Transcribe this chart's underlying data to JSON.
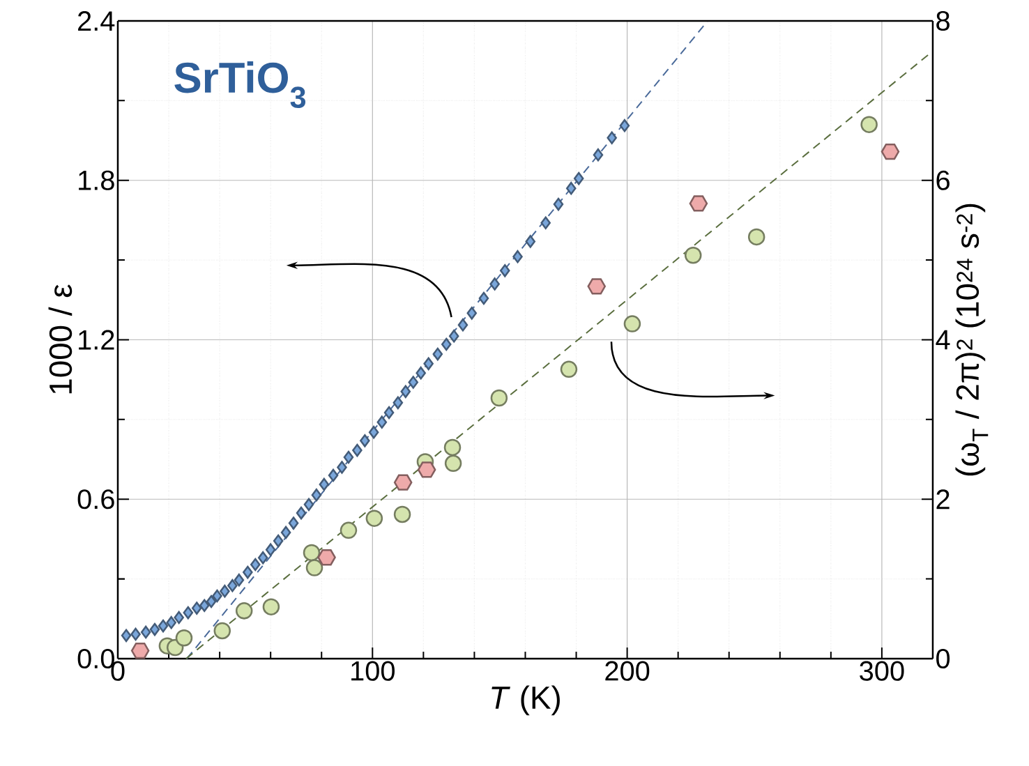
{
  "chart_data": {
    "type": "scatter",
    "annotations": [
      "SrTiO$_{3}$"
    ],
    "xlabel": "*T* (K)",
    "ylabel": "1000 / ε",
    "y2label": "(ω$_{T}$ / 2π)$^{2}$ (10$^{24}$ s$^{-2}$)",
    "xlim": [
      0,
      320
    ],
    "xticks": [
      0,
      100,
      200,
      300
    ],
    "ylim": [
      0,
      2.4
    ],
    "yticks": [
      {
        "value": 0,
        "label": "0.0"
      },
      0.6,
      1.2,
      1.8,
      2.4
    ],
    "y2lim": [
      0,
      8
    ],
    "y2ticks": [
      0,
      2,
      4,
      6,
      8
    ],
    "grid": true,
    "series": [
      {
        "axis": "y",
        "marker": "diamond",
        "color": "#7aa6da",
        "x": [
          3.3,
          7,
          11,
          14.5,
          17.8,
          21,
          24,
          27.6,
          31,
          34,
          36.7,
          39,
          42,
          45,
          47.6,
          51,
          54,
          57,
          60,
          63,
          66,
          69,
          72,
          75,
          78,
          81,
          84.6,
          88,
          90.6,
          94,
          97,
          100.5,
          103.7,
          106.5,
          110,
          113,
          116,
          119,
          122,
          125.6,
          129,
          132,
          135.5,
          139,
          143.7,
          148,
          152,
          157,
          162,
          168,
          173,
          178,
          181,
          188.6,
          194,
          199
        ],
        "values": [
          0.087,
          0.092,
          0.1,
          0.11,
          0.123,
          0.136,
          0.155,
          0.173,
          0.19,
          0.2,
          0.215,
          0.236,
          0.254,
          0.275,
          0.296,
          0.325,
          0.354,
          0.38,
          0.41,
          0.443,
          0.475,
          0.51,
          0.548,
          0.58,
          0.616,
          0.656,
          0.69,
          0.72,
          0.758,
          0.784,
          0.82,
          0.852,
          0.89,
          0.926,
          0.963,
          1.005,
          1.04,
          1.075,
          1.11,
          1.146,
          1.183,
          1.214,
          1.256,
          1.3,
          1.356,
          1.41,
          1.46,
          1.513,
          1.57,
          1.64,
          1.71,
          1.77,
          1.807,
          1.896,
          1.96,
          2.006
        ]
      },
      {
        "type": "line",
        "axis": "y",
        "marker": "none",
        "line_style": "dashed",
        "color": "#4a6a9a",
        "x": [
          27.1,
          231.6
        ],
        "values": [
          0,
          2.4
        ]
      },
      {
        "axis": "y2",
        "marker": "circle",
        "color": "#d5e4ae",
        "x": [
          19.4,
          22.5,
          26,
          41,
          49.6,
          60.2,
          76.1,
          77.2,
          90.6,
          100.7,
          111.7,
          120.7,
          131.4,
          131.7,
          149.7,
          177.1,
          202,
          225.9,
          250.8,
          295
        ],
        "values": [
          0.16,
          0.14,
          0.26,
          0.35,
          0.6,
          0.65,
          1.33,
          1.14,
          1.61,
          1.76,
          1.81,
          2.47,
          2.65,
          2.45,
          3.27,
          3.63,
          4.2,
          5.06,
          5.29,
          6.7
        ]
      },
      {
        "axis": "y2",
        "color": "#eeaaaa",
        "x": [
          8.8,
          82,
          112,
          121.3,
          188,
          228,
          303.3
        ],
        "values": [
          0.1,
          1.27,
          2.21,
          2.37,
          4.67,
          5.71,
          6.36
        ]
      },
      {
        "type": "line",
        "axis": "y2",
        "marker": "none",
        "line_style": "dashed",
        "color": "#5a6e3e",
        "x": [
          26.8,
          319.2
        ],
        "values": [
          0,
          7.6
        ]
      }
    ]
  }
}
